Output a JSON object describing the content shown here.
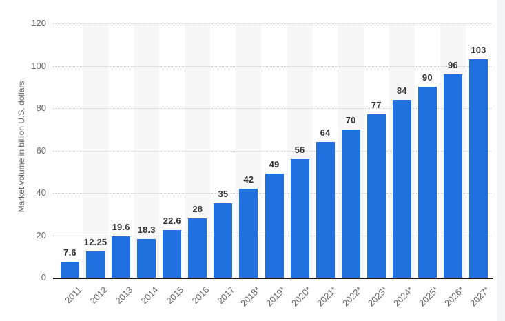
{
  "chart_data": {
    "type": "bar",
    "title": "",
    "xlabel": "",
    "ylabel": "Market volume in billion U.S. dollars",
    "categories": [
      "2011",
      "2012",
      "2013",
      "2014",
      "2015",
      "2016",
      "2017",
      "2018*",
      "2019*",
      "2020*",
      "2021*",
      "2022*",
      "2023*",
      "2024*",
      "2025*",
      "2026*",
      "2027*"
    ],
    "values": [
      7.6,
      12.25,
      19.6,
      18.3,
      22.6,
      28,
      35,
      42,
      49,
      56,
      64,
      70,
      77,
      84,
      90,
      96,
      103
    ],
    "ylim": [
      0,
      120
    ],
    "yticks": [
      0,
      20,
      40,
      60,
      80,
      100,
      120
    ],
    "grid": "horizontal-dotted",
    "legend": "none",
    "striped_category_indices": [
      1,
      3,
      5,
      7,
      9,
      11,
      13,
      15
    ],
    "colors": {
      "bar": "#2170e0",
      "stripe": "#f7f7f7",
      "gridline": "#cccccc",
      "axis_line": "#1a1a1a",
      "tick_text": "#666666",
      "value_text": "#333333",
      "background": "#ffffff"
    }
  }
}
